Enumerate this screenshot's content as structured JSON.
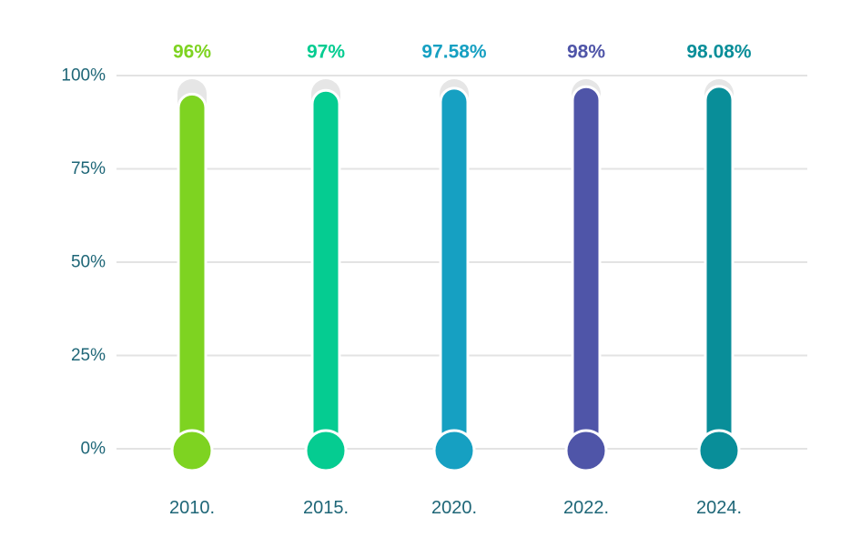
{
  "chart_data": {
    "type": "bar",
    "style": "thermometer",
    "title": "",
    "xlabel": "",
    "ylabel": "",
    "categories": [
      "2010.",
      "2015.",
      "2020.",
      "2022.",
      "2024."
    ],
    "values": [
      96,
      97,
      97.58,
      98,
      98.08
    ],
    "value_labels": [
      "96%",
      "97%",
      "97.58%",
      "98%",
      "98.08%"
    ],
    "colors": [
      "#7ed321",
      "#05cc91",
      "#16a0c2",
      "#4f55a8",
      "#098e99"
    ],
    "ylim": [
      0,
      100
    ],
    "yticks": [
      0,
      25,
      50,
      75,
      100
    ],
    "ytick_labels": [
      "0%",
      "25%",
      "50%",
      "75%",
      "100%"
    ],
    "grid": true,
    "legend": "none",
    "track_color": "#e6e6e6",
    "gridline_color": "#e3e3e3"
  }
}
